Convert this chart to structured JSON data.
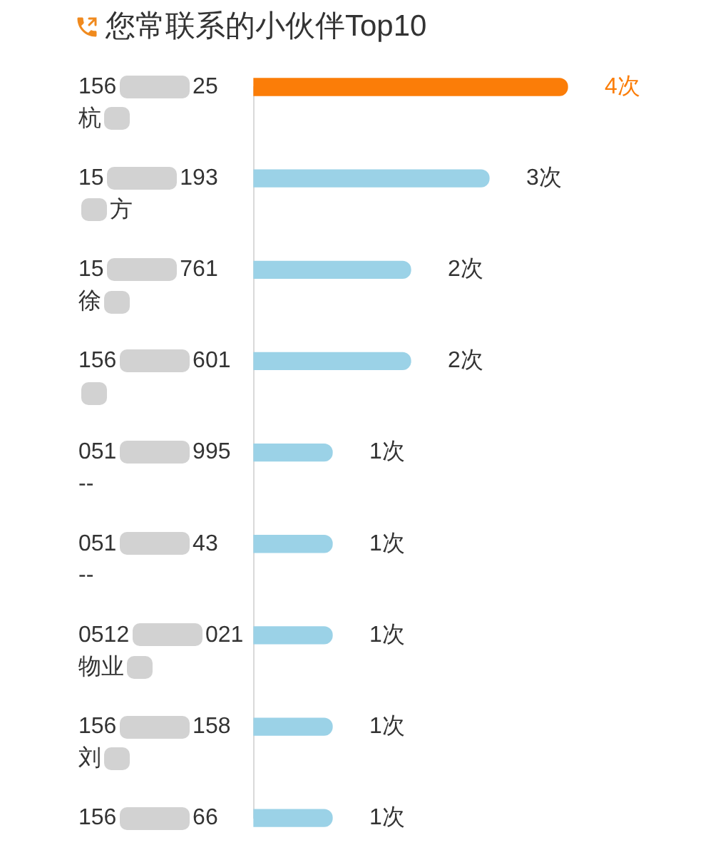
{
  "chart_data": {
    "type": "bar",
    "orientation": "horizontal",
    "title": "您常联系的小伙伴Top10",
    "categories": [
      "156 25\n杭 ",
      "15 193\n 方",
      "15 761\n徐 ",
      "156 601\n ",
      "051 995\n--",
      "051 43\n--",
      "0512 021\n物业 ",
      "156 158\n刘 ",
      "156 66"
    ],
    "values": [
      4,
      3,
      2,
      2,
      1,
      1,
      1,
      1,
      1
    ],
    "colors": [
      "#fb7d08",
      "#9bd2e7",
      "#9bd2e7",
      "#9bd2e7",
      "#9bd2e7",
      "#9bd2e7",
      "#9bd2e7",
      "#9bd2e7",
      "#9bd2e7"
    ],
    "value_labels": [
      "4次",
      "3次",
      "2次",
      "2次",
      "1次",
      "1次",
      "1次",
      "1次",
      "1次"
    ]
  }
}
